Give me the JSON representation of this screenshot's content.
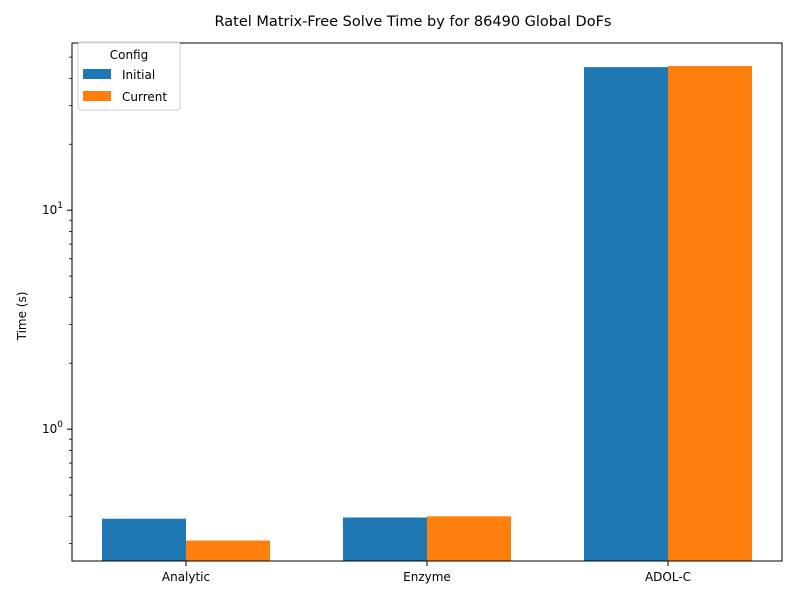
{
  "chart_data": {
    "type": "bar",
    "title": "Ratel Matrix-Free Solve Time by for 86490 Global DoFs",
    "xlabel": "",
    "ylabel": "Time (s)",
    "yscale": "log",
    "ylim": [
      0.25,
      58
    ],
    "yticks": [
      {
        "value": 1,
        "base": "10",
        "exp": "0"
      },
      {
        "value": 10,
        "base": "10",
        "exp": "1"
      }
    ],
    "categories": [
      "Analytic",
      "Enzyme",
      "ADOL-C"
    ],
    "series": [
      {
        "name": "Initial",
        "color": "#1f77b4",
        "values": [
          0.39,
          0.395,
          45.0
        ]
      },
      {
        "name": "Current",
        "color": "#ff7f0e",
        "values": [
          0.31,
          0.4,
          45.5
        ]
      }
    ],
    "legend": {
      "title": "Config",
      "position": "top-left"
    },
    "grid": false
  }
}
